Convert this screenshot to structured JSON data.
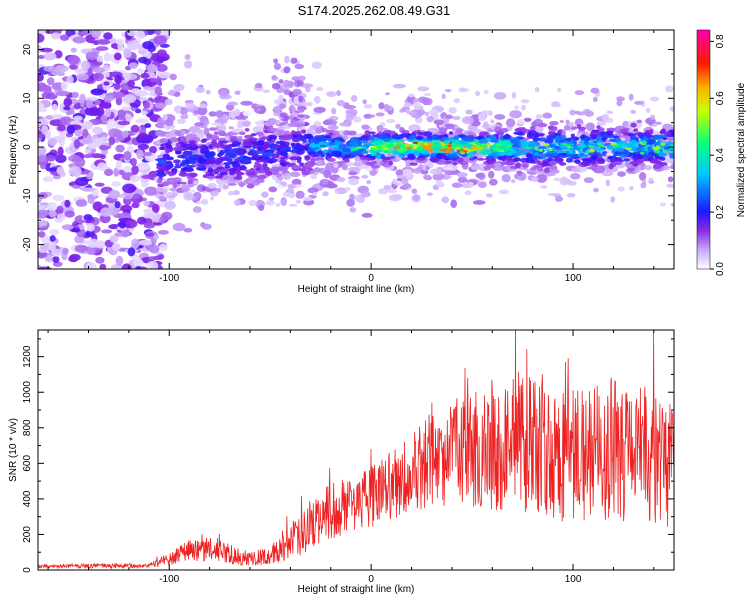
{
  "title": "S174.2025.262.08.49.G31",
  "colors": {
    "snr_line": "#ee2222",
    "frame": "#000000",
    "colormap": [
      "#ffffff",
      "#e8d8ff",
      "#c9a6ff",
      "#8a2be2",
      "#1a1aff",
      "#00c8ff",
      "#00ff80",
      "#ffff00",
      "#ff8000",
      "#ff0000",
      "#ff00aa"
    ]
  },
  "chart_data": [
    {
      "type": "heatmap",
      "title": "S174.2025.262.08.49.G31",
      "xlabel": "Height of straight line (km)",
      "ylabel": "Frequency (Hz)",
      "xlim": [
        -165,
        150
      ],
      "ylim": [
        -25,
        24
      ],
      "xticks": [
        -100,
        0,
        100
      ],
      "yticks": [
        -20,
        -10,
        0,
        10,
        20
      ],
      "colorbar": {
        "label": "Normalized spectral amplitude",
        "range": [
          0.0,
          0.84
        ],
        "ticks": [
          "0.0",
          "0.2",
          "0.4",
          "0.6",
          "0.8"
        ]
      },
      "features": {
        "noise_region_x": [
          -165,
          -105
        ],
        "signal_track_start_x": -105,
        "signal_frequency_hz": 0,
        "peak_amplitude_region_x": [
          10,
          60
        ],
        "peak_amplitude": 0.8
      }
    },
    {
      "type": "line",
      "xlabel": "Height of straight line (km)",
      "ylabel": "SNR (10 * v/v)",
      "xlim": [
        -165,
        150
      ],
      "ylim": [
        0,
        1350
      ],
      "xticks": [
        -100,
        0,
        100
      ],
      "yticks": [
        0,
        200,
        400,
        600,
        800,
        1000,
        1200
      ],
      "envelope": {
        "x": [
          -165,
          -110,
          -100,
          -90,
          -80,
          -60,
          -50,
          -40,
          -30,
          -20,
          -10,
          0,
          10,
          20,
          30,
          40,
          50,
          60,
          70,
          80,
          90,
          100,
          110,
          120,
          130,
          140,
          150
        ],
        "mean": [
          20,
          25,
          60,
          110,
          120,
          60,
          80,
          160,
          250,
          330,
          380,
          420,
          480,
          560,
          620,
          660,
          680,
          720,
          690,
          700,
          650,
          670,
          640,
          690,
          650,
          640,
          600
        ],
        "spread": [
          12,
          15,
          40,
          70,
          80,
          45,
          60,
          110,
          160,
          180,
          180,
          200,
          220,
          260,
          300,
          340,
          380,
          420,
          430,
          440,
          430,
          440,
          440,
          450,
          430,
          420,
          420
        ]
      }
    }
  ]
}
